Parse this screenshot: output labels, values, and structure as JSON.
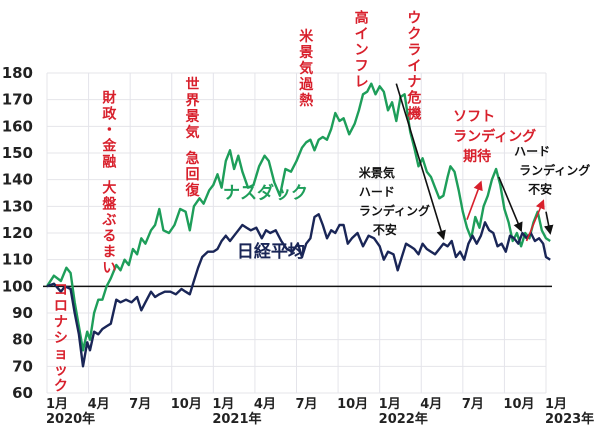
{
  "chart_data": {
    "type": "line",
    "title": "",
    "xlabel": "",
    "ylabel": "",
    "ylim": [
      60,
      180
    ],
    "yticks": [
      60,
      70,
      80,
      90,
      100,
      110,
      120,
      130,
      140,
      150,
      160,
      170,
      180
    ],
    "grid": true,
    "baseline": 100,
    "xticks": [
      {
        "label": "1月",
        "year": "2020年",
        "m": 0
      },
      {
        "label": "4月",
        "m": 3
      },
      {
        "label": "7月",
        "m": 6
      },
      {
        "label": "10月",
        "m": 9
      },
      {
        "label": "1月",
        "year": "2021年",
        "m": 12
      },
      {
        "label": "4月",
        "m": 15
      },
      {
        "label": "7月",
        "m": 18
      },
      {
        "label": "10月",
        "m": 21
      },
      {
        "label": "1月",
        "year": "2022年",
        "m": 24
      },
      {
        "label": "4月",
        "m": 27
      },
      {
        "label": "7月",
        "m": 30
      },
      {
        "label": "10月",
        "m": 33
      },
      {
        "label": "1月",
        "year": "2023年",
        "m": 36
      }
    ],
    "series": [
      {
        "name": "ナスダック",
        "color": "#1e9e5a",
        "points": [
          [
            0,
            100
          ],
          [
            0.5,
            104
          ],
          [
            1,
            102
          ],
          [
            1.4,
            107
          ],
          [
            1.7,
            105
          ],
          [
            2,
            94
          ],
          [
            2.3,
            85
          ],
          [
            2.6,
            76
          ],
          [
            2.9,
            83
          ],
          [
            3.1,
            80
          ],
          [
            3.4,
            90
          ],
          [
            3.7,
            95
          ],
          [
            4,
            95
          ],
          [
            4.3,
            100
          ],
          [
            4.6,
            103
          ],
          [
            5,
            108
          ],
          [
            5.3,
            106
          ],
          [
            5.6,
            110
          ],
          [
            5.9,
            108
          ],
          [
            6.2,
            114
          ],
          [
            6.5,
            112
          ],
          [
            6.8,
            118
          ],
          [
            7.1,
            116
          ],
          [
            7.5,
            121
          ],
          [
            7.8,
            123
          ],
          [
            8.1,
            129
          ],
          [
            8.4,
            121
          ],
          [
            8.8,
            120
          ],
          [
            9.2,
            123
          ],
          [
            9.6,
            129
          ],
          [
            10,
            128
          ],
          [
            10.3,
            121
          ],
          [
            10.6,
            130
          ],
          [
            11,
            133
          ],
          [
            11.3,
            131
          ],
          [
            11.7,
            136
          ],
          [
            12,
            138
          ],
          [
            12.3,
            142
          ],
          [
            12.6,
            137
          ],
          [
            12.9,
            147
          ],
          [
            13.2,
            151
          ],
          [
            13.5,
            144
          ],
          [
            13.8,
            149
          ],
          [
            14.1,
            143
          ],
          [
            14.5,
            137
          ],
          [
            14.9,
            138
          ],
          [
            15.3,
            145
          ],
          [
            15.7,
            149
          ],
          [
            16,
            147
          ],
          [
            16.4,
            139
          ],
          [
            16.8,
            134
          ],
          [
            17.2,
            144
          ],
          [
            17.6,
            143
          ],
          [
            18,
            147
          ],
          [
            18.4,
            152
          ],
          [
            18.7,
            154
          ],
          [
            19,
            155
          ],
          [
            19.3,
            151
          ],
          [
            19.6,
            155
          ],
          [
            19.9,
            156
          ],
          [
            20.2,
            155
          ],
          [
            20.5,
            159
          ],
          [
            20.8,
            165
          ],
          [
            21.1,
            162
          ],
          [
            21.4,
            163
          ],
          [
            21.8,
            157
          ],
          [
            22.2,
            161
          ],
          [
            22.5,
            166
          ],
          [
            22.8,
            172
          ],
          [
            23.1,
            173
          ],
          [
            23.4,
            176
          ],
          [
            23.7,
            172
          ],
          [
            24,
            175
          ],
          [
            24.3,
            173
          ],
          [
            24.6,
            166
          ],
          [
            24.9,
            169
          ],
          [
            25.2,
            162
          ],
          [
            25.5,
            171
          ],
          [
            25.8,
            172
          ],
          [
            26,
            165
          ],
          [
            26.2,
            158
          ],
          [
            26.5,
            152
          ],
          [
            26.8,
            145
          ],
          [
            27.1,
            148
          ],
          [
            27.4,
            143
          ],
          [
            27.7,
            141
          ],
          [
            28,
            137
          ],
          [
            28.3,
            133
          ],
          [
            28.6,
            134
          ],
          [
            28.9,
            141
          ],
          [
            29.1,
            145
          ],
          [
            29.4,
            143
          ],
          [
            29.7,
            136
          ],
          [
            30,
            128
          ],
          [
            30.3,
            122
          ],
          [
            30.6,
            118
          ],
          [
            30.9,
            126
          ],
          [
            31.2,
            122
          ],
          [
            31.5,
            130
          ],
          [
            31.8,
            134
          ],
          [
            32.1,
            140
          ],
          [
            32.4,
            144
          ],
          [
            32.7,
            138
          ],
          [
            33,
            129
          ],
          [
            33.3,
            124
          ],
          [
            33.6,
            117
          ],
          [
            33.9,
            120
          ],
          [
            34.2,
            115
          ],
          [
            34.5,
            120
          ],
          [
            34.8,
            118
          ],
          [
            35.1,
            124
          ],
          [
            35.4,
            128
          ],
          [
            35.7,
            121
          ],
          [
            36,
            118
          ],
          [
            36.3,
            117
          ]
        ]
      },
      {
        "name": "日経平均",
        "color": "#1a2657",
        "points": [
          [
            0,
            100
          ],
          [
            0.5,
            101
          ],
          [
            1,
            98
          ],
          [
            1.3,
            100
          ],
          [
            1.7,
            99
          ],
          [
            2,
            90
          ],
          [
            2.3,
            82
          ],
          [
            2.6,
            70
          ],
          [
            2.9,
            79
          ],
          [
            3.1,
            76
          ],
          [
            3.4,
            83
          ],
          [
            3.7,
            82
          ],
          [
            4,
            84
          ],
          [
            4.3,
            85
          ],
          [
            4.6,
            86
          ],
          [
            5,
            95
          ],
          [
            5.3,
            94
          ],
          [
            5.7,
            95
          ],
          [
            6.1,
            94
          ],
          [
            6.5,
            96
          ],
          [
            6.8,
            91
          ],
          [
            7.1,
            94
          ],
          [
            7.5,
            98
          ],
          [
            7.8,
            96
          ],
          [
            8.1,
            97
          ],
          [
            8.5,
            98
          ],
          [
            8.9,
            98
          ],
          [
            9.3,
            97
          ],
          [
            9.7,
            99
          ],
          [
            10,
            98
          ],
          [
            10.3,
            97
          ],
          [
            10.6,
            102
          ],
          [
            10.9,
            107
          ],
          [
            11.2,
            111
          ],
          [
            11.6,
            113
          ],
          [
            12,
            113
          ],
          [
            12.3,
            114
          ],
          [
            12.6,
            117
          ],
          [
            12.9,
            119
          ],
          [
            13.2,
            117
          ],
          [
            13.5,
            119
          ],
          [
            13.8,
            121
          ],
          [
            14.1,
            123
          ],
          [
            14.4,
            122
          ],
          [
            14.7,
            121
          ],
          [
            15.1,
            122
          ],
          [
            15.5,
            118
          ],
          [
            15.8,
            121
          ],
          [
            16.1,
            120
          ],
          [
            16.5,
            121
          ],
          [
            16.9,
            117
          ],
          [
            17.3,
            114
          ],
          [
            17.7,
            113
          ],
          [
            18.1,
            116
          ],
          [
            18.4,
            111
          ],
          [
            18.7,
            116
          ],
          [
            19,
            118
          ],
          [
            19.3,
            126
          ],
          [
            19.6,
            127
          ],
          [
            19.9,
            123
          ],
          [
            20.2,
            118
          ],
          [
            20.5,
            121
          ],
          [
            20.8,
            120
          ],
          [
            21.1,
            123
          ],
          [
            21.4,
            123
          ],
          [
            21.7,
            116
          ],
          [
            22,
            118
          ],
          [
            22.4,
            120
          ],
          [
            22.8,
            115
          ],
          [
            23.2,
            119
          ],
          [
            23.6,
            118
          ],
          [
            24,
            115
          ],
          [
            24.3,
            110
          ],
          [
            24.6,
            113
          ],
          [
            25,
            112
          ],
          [
            25.3,
            106
          ],
          [
            25.6,
            111
          ],
          [
            25.9,
            116
          ],
          [
            26.2,
            115
          ],
          [
            26.5,
            114
          ],
          [
            26.8,
            112
          ],
          [
            27.1,
            116
          ],
          [
            27.4,
            114
          ],
          [
            27.7,
            113
          ],
          [
            28,
            112
          ],
          [
            28.3,
            114
          ],
          [
            28.6,
            116
          ],
          [
            28.9,
            115
          ],
          [
            29.2,
            117
          ],
          [
            29.5,
            111
          ],
          [
            29.8,
            113
          ],
          [
            30.1,
            110
          ],
          [
            30.4,
            116
          ],
          [
            30.7,
            119
          ],
          [
            31,
            116
          ],
          [
            31.3,
            119
          ],
          [
            31.6,
            124
          ],
          [
            31.9,
            121
          ],
          [
            32.2,
            120
          ],
          [
            32.5,
            115
          ],
          [
            32.8,
            116
          ],
          [
            33.1,
            113
          ],
          [
            33.4,
            119
          ],
          [
            33.7,
            118
          ],
          [
            34,
            116
          ],
          [
            34.3,
            120
          ],
          [
            34.6,
            118
          ],
          [
            34.9,
            120
          ],
          [
            35.2,
            117
          ],
          [
            35.5,
            118
          ],
          [
            35.8,
            116
          ],
          [
            36,
            111
          ],
          [
            36.3,
            110
          ]
        ]
      }
    ],
    "series_labels": [
      {
        "text": "ナスダック",
        "series": "ナスダック",
        "m": 12.7,
        "v": 133
      },
      {
        "text": "日経平均",
        "series": "日経平均",
        "m": 13.7,
        "v": 111
      }
    ],
    "annotations": [
      {
        "id": "covid",
        "text": "コロナショック",
        "color": "#d8202c",
        "vertical": true,
        "m": 1.0,
        "v": 97
      },
      {
        "id": "fiscal",
        "text": "財政・金融　大盤ぶるまい",
        "color": "#d8202c",
        "vertical": true,
        "m": 4.5,
        "v": 169
      },
      {
        "id": "global",
        "text": "世界景気　急回復",
        "color": "#d8202c",
        "vertical": true,
        "m": 10.5,
        "v": 174
      },
      {
        "id": "us-overheat",
        "text": "米景気過熱",
        "color": "#d8202c",
        "vertical": true,
        "m": 18.7,
        "v": 192
      },
      {
        "id": "inflation",
        "text": "高インフレ",
        "color": "#d8202c",
        "vertical": true,
        "m": 22.7,
        "v": 199
      },
      {
        "id": "ukraine",
        "text": "ウクライナ危機",
        "color": "#d8202c",
        "vertical": true,
        "m": 26.5,
        "v": 199
      },
      {
        "id": "soft-landing",
        "lines": [
          "ソフト",
          "ランディング",
          "期待"
        ],
        "color": "#d8202c",
        "m": 29.3,
        "v": 162
      },
      {
        "id": "us-hard-landing",
        "lines": [
          "米景気",
          "ハード",
          "ランディング",
          "不安"
        ],
        "color": "#111111",
        "m": 22.5,
        "v": 141
      },
      {
        "id": "hard-landing",
        "lines": [
          "ハード",
          "ランディング",
          "不安"
        ],
        "color": "#111111",
        "m": 33.7,
        "v": 149
      }
    ],
    "arrows": [
      {
        "color": "#111111",
        "from": [
          25.2,
          176
        ],
        "to": [
          28.6,
          118
        ]
      },
      {
        "color": "#d8202c",
        "from": [
          30.3,
          125
        ],
        "to": [
          31.3,
          139
        ]
      },
      {
        "color": "#111111",
        "from": [
          32.6,
          141
        ],
        "to": [
          34.2,
          121
        ]
      },
      {
        "color": "#d8202c",
        "from": [
          34.6,
          117
        ],
        "to": [
          35.8,
          132
        ]
      },
      {
        "color": "#111111",
        "from": [
          36,
          128
        ],
        "to": [
          36.3,
          120
        ]
      }
    ]
  }
}
